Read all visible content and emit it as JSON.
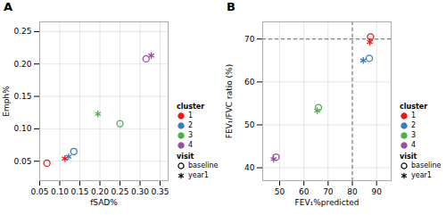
{
  "chart_data": [
    {
      "type": "scatter",
      "title": "A",
      "x_label": "fSAD%",
      "y_label": "Emph%",
      "xlim": [
        0.05,
        0.37
      ],
      "ylim": [
        0.02,
        0.265
      ],
      "xticks": [
        0.05,
        {
          "value": 0.1,
          "label": "0.10"
        },
        0.15,
        {
          "value": 0.2,
          "label": "0.20"
        },
        0.25,
        {
          "value": 0.3,
          "label": "0.30"
        },
        0.35
      ],
      "yticks": [
        0.05,
        {
          "value": 0.1,
          "label": "0.10"
        },
        0.15,
        {
          "value": 0.2,
          "label": "0.20"
        },
        0.25
      ],
      "grid": true,
      "legend": "lower right",
      "legend_title": "cluster",
      "visit_legend_title": "visit",
      "visits": [
        {
          "name": "baseline",
          "marker": "circle"
        },
        {
          "name": "year1",
          "marker": "asterisk"
        }
      ],
      "series": [
        {
          "name": "1",
          "color": "#e41a1c",
          "x": [
            0.068,
            0.113
          ],
          "values": [
            0.047,
            0.054
          ],
          "visit": [
            "baseline",
            "year1"
          ]
        },
        {
          "name": "2",
          "color": "#377eb8",
          "x": [
            0.135,
            0.122
          ],
          "values": [
            0.065,
            0.057
          ],
          "visit": [
            "baseline",
            "year1"
          ]
        },
        {
          "name": "3",
          "color": "#4daf4a",
          "x": [
            0.25,
            0.195
          ],
          "values": [
            0.108,
            0.123
          ],
          "visit": [
            "baseline",
            "year1"
          ]
        },
        {
          "name": "4",
          "color": "#984ea3",
          "x": [
            0.315,
            0.328
          ],
          "values": [
            0.208,
            0.213
          ],
          "visit": [
            "baseline",
            "year1"
          ]
        }
      ]
    },
    {
      "type": "scatter",
      "title": "B",
      "x_label": "FEV₁%predicted",
      "y_label": "FEV₁/FVC ratio (%)",
      "xlim": [
        43,
        96
      ],
      "ylim": [
        37,
        74
      ],
      "xticks": [
        50,
        60,
        70,
        80,
        90
      ],
      "yticks": [
        40,
        50,
        60,
        70
      ],
      "hline": 70,
      "vline": 80,
      "grid": true,
      "legend": "lower right",
      "legend_title": "cluster",
      "visit_legend_title": "visit",
      "visits": [
        {
          "name": "baseline",
          "marker": "circle"
        },
        {
          "name": "year1",
          "marker": "asterisk"
        }
      ],
      "series": [
        {
          "name": "1",
          "color": "#e41a1c",
          "x": [
            87.5,
            87.2
          ],
          "values": [
            70.5,
            69.3
          ],
          "visit": [
            "baseline",
            "year1"
          ]
        },
        {
          "name": "2",
          "color": "#377eb8",
          "x": [
            87.0,
            84.5
          ],
          "values": [
            65.5,
            65.0
          ],
          "visit": [
            "baseline",
            "year1"
          ]
        },
        {
          "name": "3",
          "color": "#4daf4a",
          "x": [
            66.0,
            65.5
          ],
          "values": [
            54.0,
            53.3
          ],
          "visit": [
            "baseline",
            "year1"
          ]
        },
        {
          "name": "4",
          "color": "#984ea3",
          "x": [
            48.5,
            47.5
          ],
          "values": [
            42.5,
            42.0
          ],
          "visit": [
            "baseline",
            "year1"
          ]
        }
      ]
    }
  ]
}
